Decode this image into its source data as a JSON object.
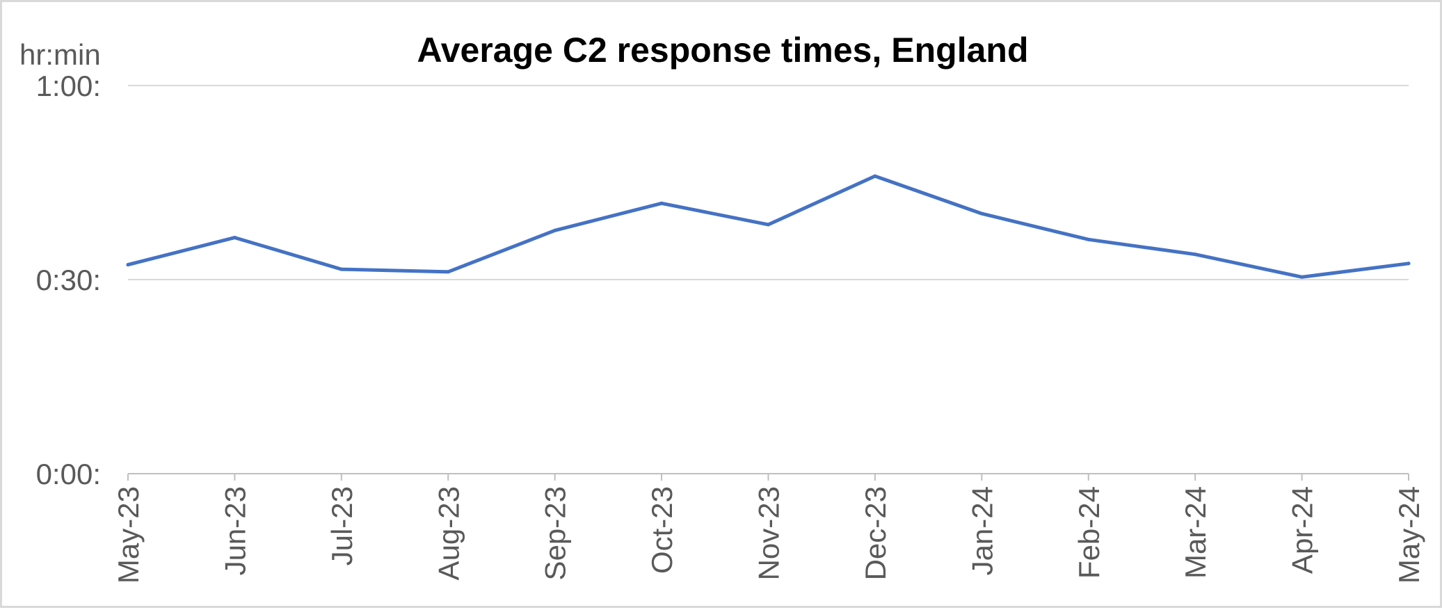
{
  "chart_data": {
    "type": "line",
    "title": "Average C2 response times, England",
    "y_unit_label": "hr:min",
    "xlabel": "",
    "ylabel": "",
    "categories": [
      "May-23",
      "Jun-23",
      "Jul-23",
      "Aug-23",
      "Sep-23",
      "Oct-23",
      "Nov-23",
      "Dec-23",
      "Jan-24",
      "Feb-24",
      "Mar-24",
      "Apr-24",
      "May-24"
    ],
    "series": [
      {
        "values_minutes": [
          32.3,
          36.5,
          31.6,
          31.2,
          37.6,
          41.8,
          38.5,
          46.0,
          40.2,
          36.2,
          33.9,
          30.4,
          32.5
        ],
        "color": "#4472c4"
      }
    ],
    "ylim_minutes": [
      0,
      60
    ],
    "y_ticks": [
      {
        "value_minutes": 0,
        "label": "0:00:"
      },
      {
        "value_minutes": 30,
        "label": "0:30:"
      },
      {
        "value_minutes": 60,
        "label": "1:00:"
      }
    ],
    "grid": true,
    "legend": "none",
    "colors": {
      "line": "#4472c4",
      "grid": "#d9d9d9",
      "axis": "#bfbfbf",
      "text": "#595959",
      "border": "#d9d9d9"
    }
  }
}
